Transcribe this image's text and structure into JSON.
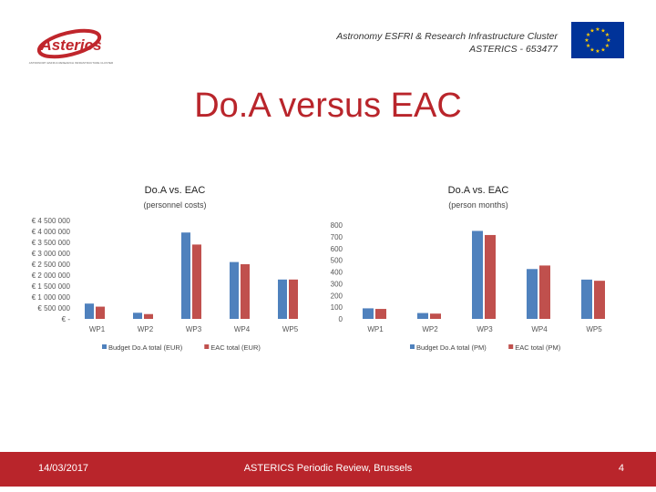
{
  "header": {
    "line1": "Astronomy ESFRI & Research Infrastructure Cluster",
    "line2": "ASTERICS - 653477",
    "logo_text": "Asterics",
    "logo_tagline": "ASTRONOMY ESFRI & RESEARCH INFRASTRUCTURE CLUSTER"
  },
  "slide": {
    "title": "Do.A versus EAC"
  },
  "colors": {
    "budget": "#4f81bd",
    "eac": "#c0504d",
    "accent": "#b9252b",
    "eu_blue": "#003399",
    "eu_gold": "#ffcc00"
  },
  "chart_data": [
    {
      "type": "bar",
      "title": "Do.A vs. EAC",
      "subtitle": "(personnel costs)",
      "categories": [
        "WP1",
        "WP2",
        "WP3",
        "WP4",
        "WP5"
      ],
      "series": [
        {
          "name": "Budget Do.A total (EUR)",
          "values": [
            700000,
            280000,
            3950000,
            2600000,
            1800000
          ]
        },
        {
          "name": "EAC total (EUR)",
          "values": [
            560000,
            220000,
            3400000,
            2500000,
            1800000
          ]
        }
      ],
      "ylim": [
        0,
        4500000
      ],
      "yticks": [
        0,
        500000,
        1000000,
        1500000,
        2000000,
        2500000,
        3000000,
        3500000,
        4000000,
        4500000
      ],
      "ytick_labels": [
        "€ -",
        "€ 500 000",
        "€ 1 000 000",
        "€ 1 500 000",
        "€ 2 000 000",
        "€ 2 500 000",
        "€ 3 000 000",
        "€ 3 500 000",
        "€ 4 000 000",
        "€ 4 500 000"
      ],
      "grid": false,
      "legend": "bottom"
    },
    {
      "type": "bar",
      "title": "Do.A vs. EAC",
      "subtitle": "(person months)",
      "categories": [
        "WP1",
        "WP2",
        "WP3",
        "WP4",
        "WP5"
      ],
      "series": [
        {
          "name": "Budget Do.A total (PM)",
          "values": [
            90,
            50,
            750,
            425,
            335
          ]
        },
        {
          "name": "EAC total (PM)",
          "values": [
            85,
            45,
            715,
            455,
            325
          ]
        }
      ],
      "ylim": [
        0,
        800
      ],
      "yticks": [
        0,
        100,
        200,
        300,
        400,
        500,
        600,
        700,
        800
      ],
      "ytick_labels": [
        "0",
        "100",
        "200",
        "300",
        "400",
        "500",
        "600",
        "700",
        "800"
      ],
      "grid": false,
      "legend": "bottom"
    }
  ],
  "footer": {
    "date": "14/03/2017",
    "center": "ASTERICS Periodic Review, Brussels",
    "page": "4"
  }
}
